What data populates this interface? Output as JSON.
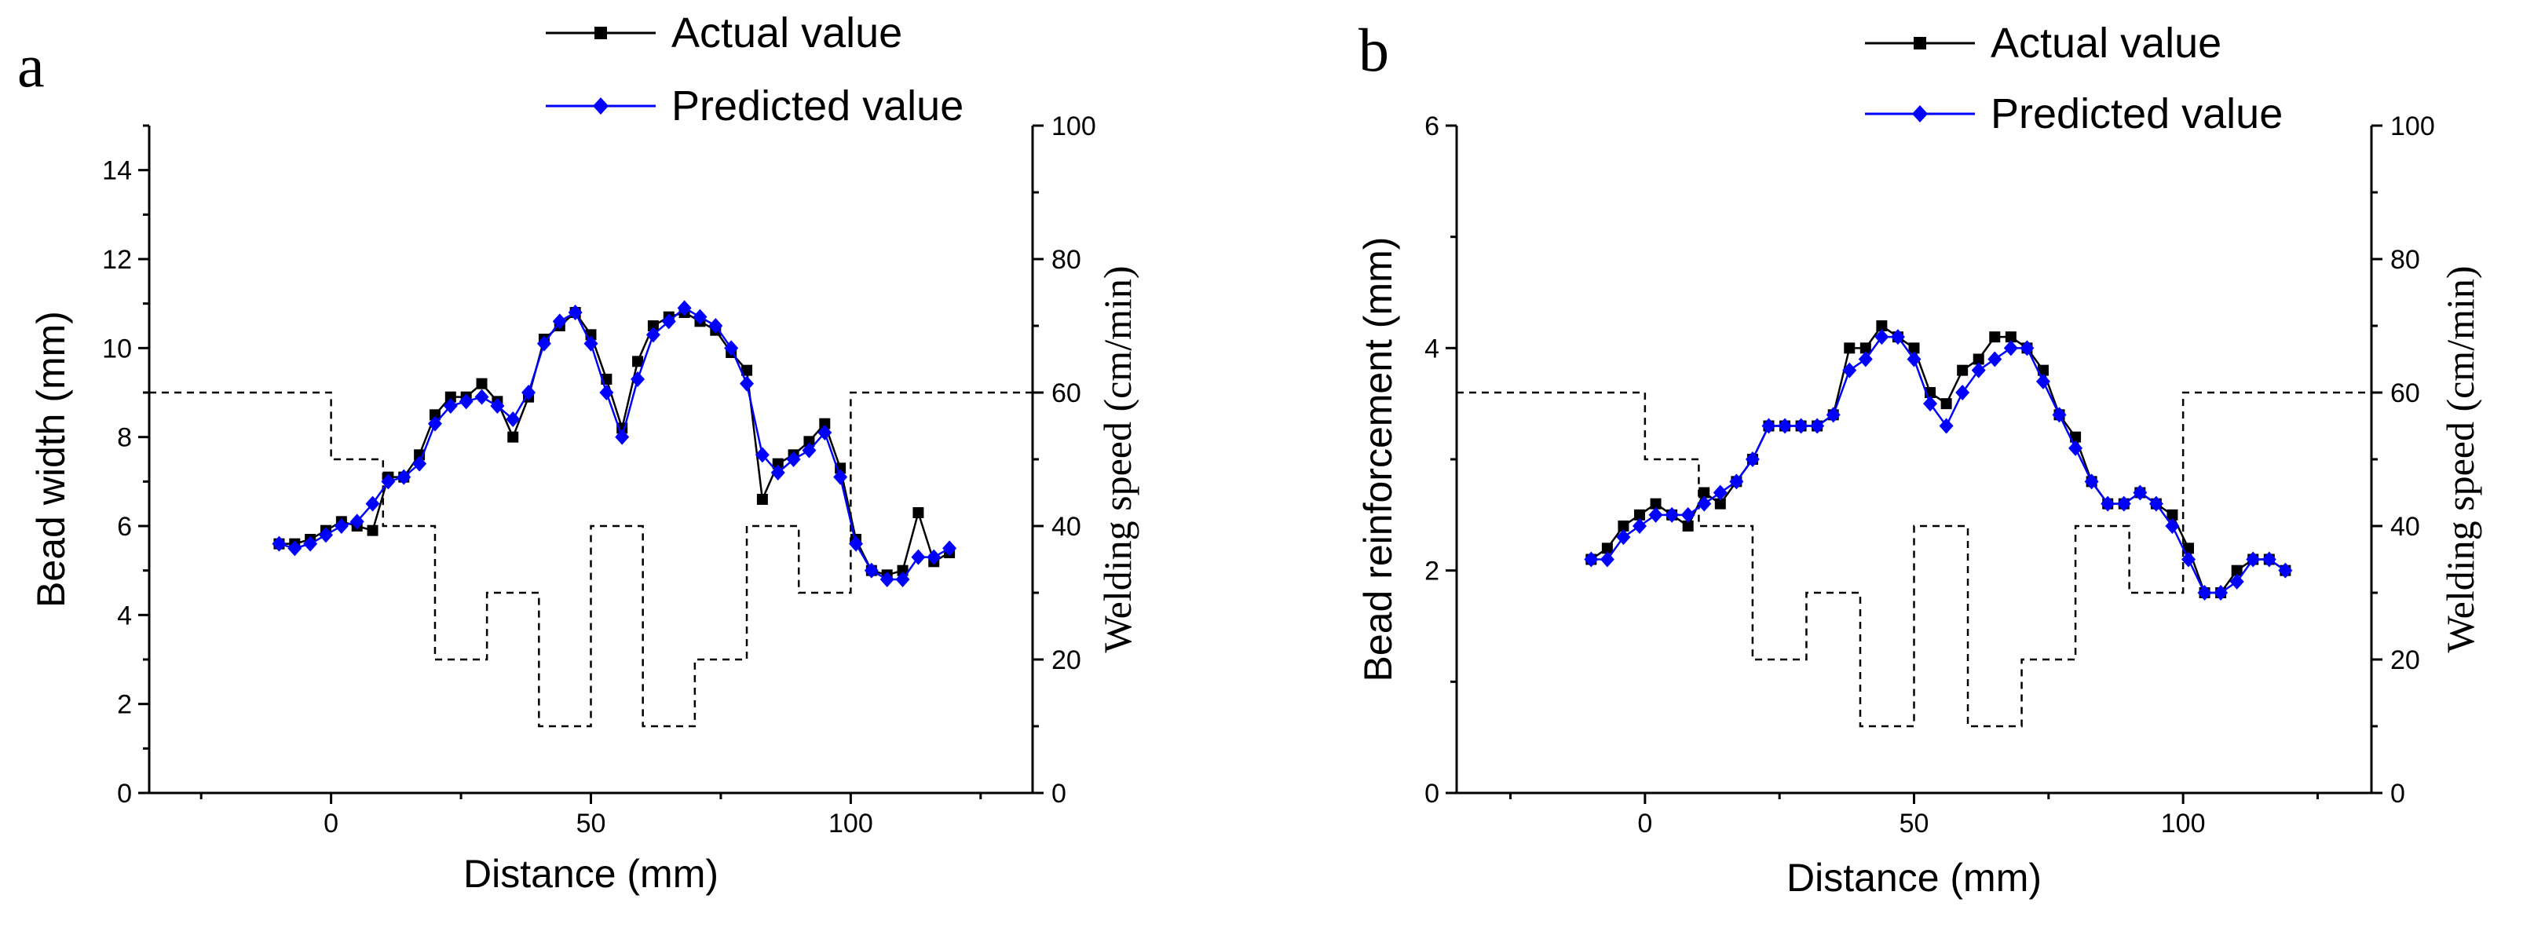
{
  "chart_data": [
    {
      "type": "line",
      "panel_label": "a",
      "xlabel": "Distance (mm)",
      "ylabel": "Bead width (mm)",
      "y2label": "Welding speed (cm/min)",
      "xlim": [
        -35,
        135
      ],
      "ylim": [
        0,
        15
      ],
      "y2lim": [
        0,
        100
      ],
      "xticks": [
        0,
        50,
        100
      ],
      "yticks": [
        0,
        2,
        4,
        6,
        8,
        10,
        12,
        14
      ],
      "y2ticks": [
        0,
        20,
        40,
        60,
        80,
        100
      ],
      "legend_position": "top-right",
      "series": [
        {
          "name": "Actual value",
          "color": "#000000",
          "marker": "square",
          "x": [
            -10,
            -7,
            -4,
            -1,
            2,
            5,
            8,
            11,
            14,
            17,
            20,
            23,
            26,
            29,
            32,
            35,
            38,
            41,
            44,
            47,
            50,
            53,
            56,
            59,
            62,
            65,
            68,
            71,
            74,
            77,
            80,
            83,
            86,
            89,
            92,
            95,
            98,
            101,
            104,
            107,
            110,
            113,
            116,
            119
          ],
          "y": [
            5.6,
            5.6,
            5.7,
            5.9,
            6.1,
            6.0,
            5.9,
            7.1,
            7.1,
            7.6,
            8.5,
            8.9,
            8.9,
            9.2,
            8.8,
            8.0,
            8.9,
            10.2,
            10.5,
            10.8,
            10.3,
            9.3,
            8.2,
            9.7,
            10.5,
            10.7,
            10.8,
            10.6,
            10.4,
            9.9,
            9.5,
            6.6,
            7.4,
            7.6,
            7.9,
            8.3,
            7.3,
            5.7,
            5.0,
            4.9,
            5.0,
            6.3,
            5.2,
            5.4
          ]
        },
        {
          "name": "Predicted value",
          "color": "#0000ff",
          "marker": "diamond",
          "x": [
            -10,
            -7,
            -4,
            -1,
            2,
            5,
            8,
            11,
            14,
            17,
            20,
            23,
            26,
            29,
            32,
            35,
            38,
            41,
            44,
            47,
            50,
            53,
            56,
            59,
            62,
            65,
            68,
            71,
            74,
            77,
            80,
            83,
            86,
            89,
            92,
            95,
            98,
            101,
            104,
            107,
            110,
            113,
            116,
            119
          ],
          "y": [
            5.6,
            5.5,
            5.6,
            5.8,
            6.0,
            6.1,
            6.5,
            7.0,
            7.1,
            7.4,
            8.3,
            8.7,
            8.8,
            8.9,
            8.7,
            8.4,
            9.0,
            10.1,
            10.6,
            10.8,
            10.1,
            9.0,
            8.0,
            9.3,
            10.3,
            10.6,
            10.9,
            10.7,
            10.5,
            10.0,
            9.2,
            7.6,
            7.2,
            7.5,
            7.7,
            8.1,
            7.1,
            5.6,
            5.0,
            4.8,
            4.8,
            5.3,
            5.3,
            5.5
          ]
        }
      ],
      "speed_profile": {
        "name": "Welding speed",
        "axis": "y2",
        "style": "dashed",
        "x": [
          -35,
          0,
          0,
          10,
          10,
          20,
          20,
          30,
          30,
          40,
          40,
          50,
          50,
          60,
          60,
          70,
          70,
          80,
          80,
          90,
          90,
          100,
          100,
          135
        ],
        "y": [
          60,
          60,
          50,
          50,
          40,
          40,
          20,
          20,
          30,
          30,
          10,
          10,
          40,
          40,
          10,
          10,
          20,
          20,
          40,
          40,
          30,
          30,
          60,
          60
        ]
      }
    },
    {
      "type": "line",
      "panel_label": "b",
      "xlabel": "Distance (mm)",
      "ylabel": "Bead reinforcement (mm)",
      "y2label": "Welding speed (cm/min)",
      "xlim": [
        -35,
        135
      ],
      "ylim": [
        0,
        6
      ],
      "y2lim": [
        0,
        100
      ],
      "xticks": [
        0,
        50,
        100
      ],
      "yticks": [
        0,
        2,
        4,
        6
      ],
      "y2ticks": [
        0,
        20,
        40,
        60,
        80,
        100
      ],
      "legend_position": "top-right",
      "series": [
        {
          "name": "Actual value",
          "color": "#000000",
          "marker": "square",
          "x": [
            -10,
            -7,
            -4,
            -1,
            2,
            5,
            8,
            11,
            14,
            17,
            20,
            23,
            26,
            29,
            32,
            35,
            38,
            41,
            44,
            47,
            50,
            53,
            56,
            59,
            62,
            65,
            68,
            71,
            74,
            77,
            80,
            83,
            86,
            89,
            92,
            95,
            98,
            101,
            104,
            107,
            110,
            113,
            116,
            119
          ],
          "y": [
            2.1,
            2.2,
            2.4,
            2.5,
            2.6,
            2.5,
            2.4,
            2.7,
            2.6,
            2.8,
            3.0,
            3.3,
            3.3,
            3.3,
            3.3,
            3.4,
            4.0,
            4.0,
            4.2,
            4.1,
            4.0,
            3.6,
            3.5,
            3.8,
            3.9,
            4.1,
            4.1,
            4.0,
            3.8,
            3.4,
            3.2,
            2.8,
            2.6,
            2.6,
            2.7,
            2.6,
            2.5,
            2.2,
            1.8,
            1.8,
            2.0,
            2.1,
            2.1,
            2.0
          ]
        },
        {
          "name": "Predicted value",
          "color": "#0000ff",
          "marker": "diamond",
          "x": [
            -10,
            -7,
            -4,
            -1,
            2,
            5,
            8,
            11,
            14,
            17,
            20,
            23,
            26,
            29,
            32,
            35,
            38,
            41,
            44,
            47,
            50,
            53,
            56,
            59,
            62,
            65,
            68,
            71,
            74,
            77,
            80,
            83,
            86,
            89,
            92,
            95,
            98,
            101,
            104,
            107,
            110,
            113,
            116,
            119
          ],
          "y": [
            2.1,
            2.1,
            2.3,
            2.4,
            2.5,
            2.5,
            2.5,
            2.6,
            2.7,
            2.8,
            3.0,
            3.3,
            3.3,
            3.3,
            3.3,
            3.4,
            3.8,
            3.9,
            4.1,
            4.1,
            3.9,
            3.5,
            3.3,
            3.6,
            3.8,
            3.9,
            4.0,
            4.0,
            3.7,
            3.4,
            3.1,
            2.8,
            2.6,
            2.6,
            2.7,
            2.6,
            2.4,
            2.1,
            1.8,
            1.8,
            1.9,
            2.1,
            2.1,
            2.0
          ]
        }
      ],
      "speed_profile": {
        "name": "Welding speed",
        "axis": "y2",
        "style": "dashed",
        "x": [
          -35,
          0,
          0,
          10,
          10,
          20,
          20,
          30,
          30,
          40,
          40,
          50,
          50,
          60,
          60,
          70,
          70,
          80,
          80,
          90,
          90,
          100,
          100,
          135
        ],
        "y": [
          60,
          60,
          50,
          50,
          40,
          40,
          20,
          20,
          30,
          30,
          10,
          10,
          40,
          40,
          10,
          10,
          20,
          20,
          40,
          40,
          30,
          30,
          60,
          60
        ]
      }
    }
  ]
}
